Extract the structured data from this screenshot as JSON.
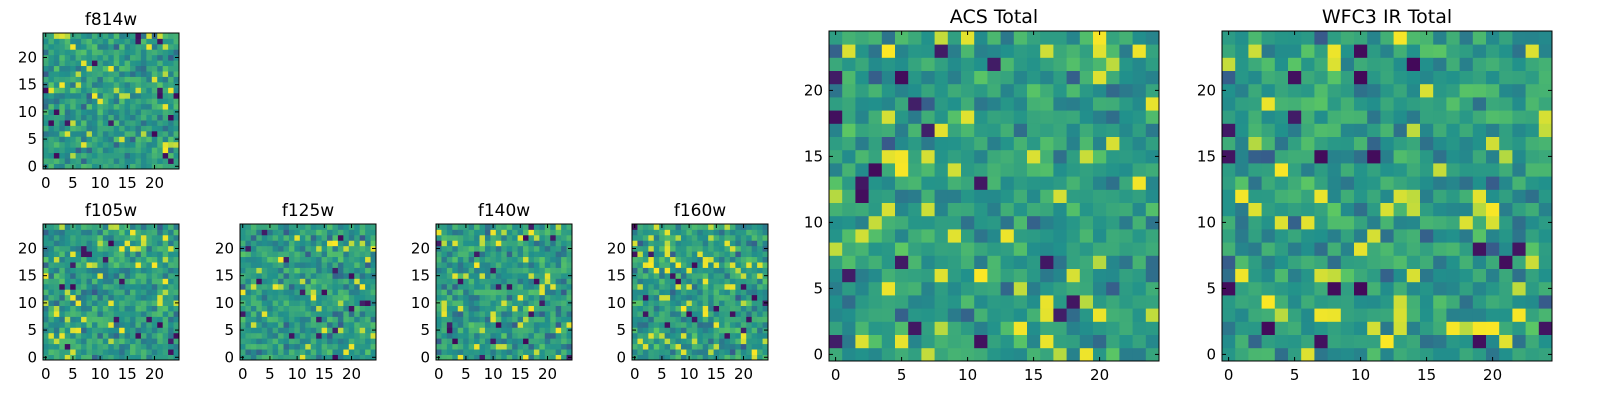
{
  "chart_data": [
    {
      "id": "f814w",
      "type": "heatmap",
      "title": "f814w",
      "size": 25,
      "seed": 814,
      "xticks": [
        "0",
        "5",
        "10",
        "15",
        "20"
      ],
      "yticks": [
        "0",
        "5",
        "10",
        "15",
        "20"
      ],
      "xlim": [
        0,
        25
      ],
      "ylim": [
        0,
        25
      ],
      "colormap": "viridis"
    },
    {
      "id": "f105w",
      "type": "heatmap",
      "title": "f105w",
      "size": 25,
      "seed": 105,
      "xticks": [
        "0",
        "5",
        "10",
        "15",
        "20"
      ],
      "yticks": [
        "0",
        "5",
        "10",
        "15",
        "20"
      ],
      "xlim": [
        0,
        25
      ],
      "ylim": [
        0,
        25
      ],
      "colormap": "viridis"
    },
    {
      "id": "f125w",
      "type": "heatmap",
      "title": "f125w",
      "size": 25,
      "seed": 125,
      "xticks": [
        "0",
        "5",
        "10",
        "15",
        "20"
      ],
      "yticks": [
        "0",
        "5",
        "10",
        "15",
        "20"
      ],
      "xlim": [
        0,
        25
      ],
      "ylim": [
        0,
        25
      ],
      "colormap": "viridis"
    },
    {
      "id": "f140w",
      "type": "heatmap",
      "title": "f140w",
      "size": 25,
      "seed": 140,
      "xticks": [
        "0",
        "5",
        "10",
        "15",
        "20"
      ],
      "yticks": [
        "0",
        "5",
        "10",
        "15",
        "20"
      ],
      "xlim": [
        0,
        25
      ],
      "ylim": [
        0,
        25
      ],
      "colormap": "viridis"
    },
    {
      "id": "f160w",
      "type": "heatmap",
      "title": "f160w",
      "size": 25,
      "seed": 160,
      "xticks": [
        "0",
        "5",
        "10",
        "15",
        "20"
      ],
      "yticks": [
        "0",
        "5",
        "10",
        "15",
        "20"
      ],
      "xlim": [
        0,
        25
      ],
      "ylim": [
        0,
        25
      ],
      "colormap": "viridis"
    },
    {
      "id": "acs-total",
      "type": "heatmap",
      "title": "ACS Total",
      "size": 25,
      "seed": 777,
      "xticks": [
        "0",
        "5",
        "10",
        "15",
        "20"
      ],
      "yticks": [
        "0",
        "5",
        "10",
        "15",
        "20"
      ],
      "xlim": [
        0,
        25
      ],
      "ylim": [
        0,
        25
      ],
      "colormap": "viridis"
    },
    {
      "id": "wfc3-ir-total",
      "type": "heatmap",
      "title": "WFC3 IR Total",
      "size": 25,
      "seed": 333,
      "xticks": [
        "0",
        "5",
        "10",
        "15",
        "20"
      ],
      "yticks": [
        "0",
        "5",
        "10",
        "15",
        "20"
      ],
      "xlim": [
        0,
        25
      ],
      "ylim": [
        0,
        25
      ],
      "colormap": "viridis"
    }
  ],
  "colors": {
    "viridis": [
      "#440154",
      "#3b528b",
      "#21918c",
      "#5ec962",
      "#fde725"
    ]
  }
}
